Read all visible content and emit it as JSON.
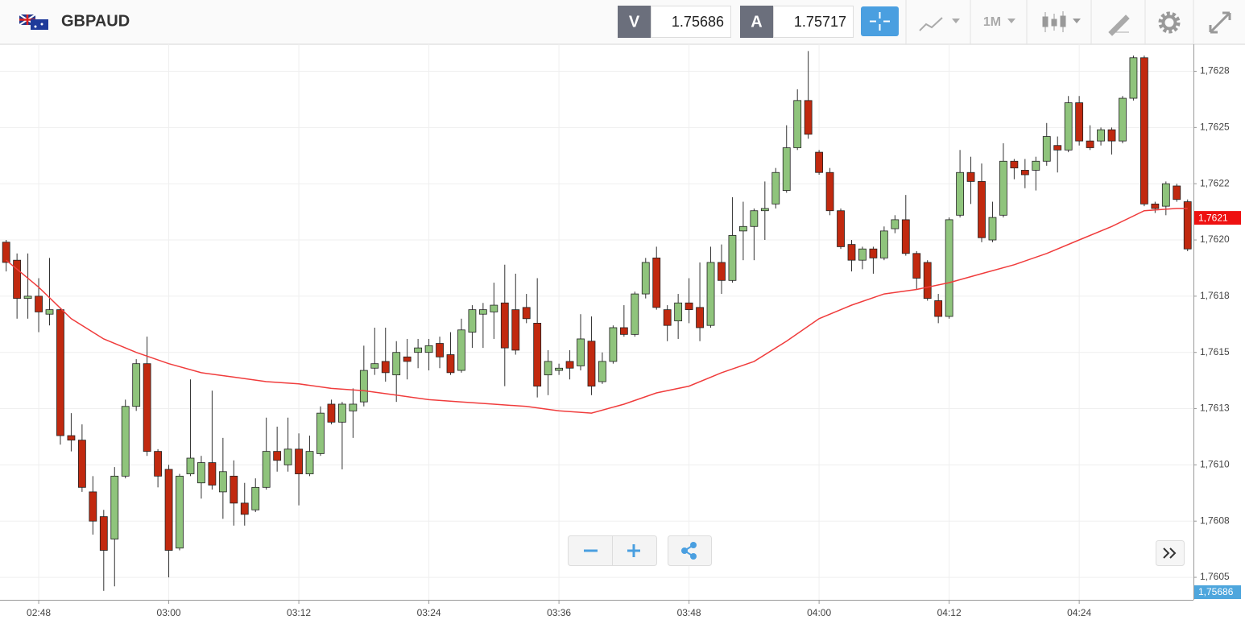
{
  "header": {
    "symbol": "GBPAUD",
    "bid_label": "V",
    "bid": 1.75686,
    "ask_label": "A",
    "ask": 1.75717,
    "timeframe": "1M"
  },
  "chart_data": {
    "type": "candlestick",
    "up_color": "#8fc47c",
    "down_color": "#c1290f",
    "x": [
      165,
      166,
      167,
      168,
      169,
      170,
      171,
      172,
      173,
      174,
      175,
      176,
      177,
      178,
      179,
      180,
      181,
      182,
      183,
      184,
      185,
      186,
      187,
      188,
      189,
      190,
      191,
      192,
      193,
      194,
      195,
      196,
      197,
      198,
      199,
      200,
      201,
      202,
      203,
      204,
      205,
      206,
      207,
      208,
      209,
      210,
      211,
      212,
      213,
      214,
      215,
      216,
      217,
      218,
      219,
      220,
      221,
      222,
      223,
      224,
      225,
      226,
      227,
      228,
      229,
      230,
      231,
      232,
      233,
      234,
      235,
      236,
      237,
      238,
      239,
      240,
      241,
      242,
      243,
      244,
      245,
      246,
      247,
      248,
      249,
      250,
      251,
      252,
      253,
      254,
      255,
      256,
      257,
      258,
      259,
      260,
      261,
      262,
      263,
      264,
      265,
      266,
      267,
      268,
      269,
      270,
      271,
      272,
      273,
      274
    ],
    "open": [
      1.76199,
      1.76191,
      1.76174,
      1.76175,
      1.76167,
      1.76169,
      1.76113,
      1.76111,
      1.76088,
      1.76077,
      1.76067,
      1.76095,
      1.76126,
      1.76145,
      1.76106,
      1.76098,
      1.76063,
      1.76096,
      1.76092,
      1.76101,
      1.76088,
      1.76095,
      1.76083,
      1.7608,
      1.7609,
      1.76106,
      1.761,
      1.76107,
      1.76096,
      1.76105,
      1.76127,
      1.76119,
      1.76124,
      1.76128,
      1.76143,
      1.76146,
      1.7614,
      1.76148,
      1.7615,
      1.7615,
      1.76154,
      1.76149,
      1.76142,
      1.76159,
      1.76167,
      1.76168,
      1.76172,
      1.76169,
      1.7617,
      1.76163,
      1.7614,
      1.76142,
      1.76146,
      1.76144,
      1.76155,
      1.76137,
      1.76146,
      1.76161,
      1.76158,
      1.76176,
      1.76192,
      1.76169,
      1.76164,
      1.76172,
      1.7617,
      1.76162,
      1.7619,
      1.76182,
      1.76204,
      1.76206,
      1.76213,
      1.76216,
      1.76222,
      1.76241,
      1.76262,
      1.76239,
      1.7623,
      1.76213,
      1.76198,
      1.76191,
      1.76196,
      1.76192,
      1.76205,
      1.76209,
      1.76194,
      1.7619,
      1.76173,
      1.76166,
      1.76211,
      1.7623,
      1.76226,
      1.762,
      1.76211,
      1.76235,
      1.76231,
      1.76231,
      1.76235,
      1.76242,
      1.7624,
      1.76261,
      1.76244,
      1.76244,
      1.76249,
      1.76244,
      1.76263,
      1.76281,
      1.76216,
      1.76215,
      1.76224,
      1.76217
    ],
    "high": [
      1.762,
      1.76194,
      1.76194,
      1.76183,
      1.76192,
      1.7617,
      1.76123,
      1.76118,
      1.76095,
      1.7608,
      1.76099,
      1.76129,
      1.76147,
      1.76157,
      1.76107,
      1.761,
      1.76096,
      1.76138,
      1.76104,
      1.76133,
      1.76112,
      1.76102,
      1.76092,
      1.76094,
      1.76121,
      1.76117,
      1.76121,
      1.76114,
      1.76113,
      1.76126,
      1.76129,
      1.76128,
      1.76134,
      1.76153,
      1.76161,
      1.76161,
      1.76155,
      1.76156,
      1.76156,
      1.76156,
      1.76157,
      1.76159,
      1.76165,
      1.76171,
      1.76172,
      1.76181,
      1.76189,
      1.76185,
      1.76176,
      1.76183,
      1.76151,
      1.76145,
      1.76151,
      1.76167,
      1.76166,
      1.7615,
      1.76162,
      1.76171,
      1.76177,
      1.76192,
      1.76197,
      1.76171,
      1.76176,
      1.76183,
      1.7619,
      1.76197,
      1.76198,
      1.76219,
      1.76217,
      1.76214,
      1.76226,
      1.76232,
      1.76251,
      1.76267,
      1.76284,
      1.7624,
      1.76232,
      1.76214,
      1.762,
      1.76197,
      1.76197,
      1.76206,
      1.76211,
      1.7622,
      1.76195,
      1.76191,
      1.76176,
      1.7621,
      1.7624,
      1.76237,
      1.76234,
      1.76217,
      1.76243,
      1.76236,
      1.76236,
      1.76237,
      1.76252,
      1.76246,
      1.76264,
      1.76264,
      1.76251,
      1.7625,
      1.7625,
      1.76264,
      1.76282,
      1.76282,
      1.76217,
      1.76226,
      1.76225,
      1.76218
    ],
    "low": [
      1.76186,
      1.76165,
      1.76165,
      1.76159,
      1.76162,
      1.76109,
      1.76106,
      1.76088,
      1.76069,
      1.76044,
      1.76046,
      1.76094,
      1.76124,
      1.76104,
      1.7609,
      1.7605,
      1.76062,
      1.76095,
      1.76085,
      1.76089,
      1.76076,
      1.76073,
      1.76073,
      1.76079,
      1.76089,
      1.76097,
      1.76097,
      1.76082,
      1.76095,
      1.76104,
      1.76118,
      1.76098,
      1.76112,
      1.76126,
      1.7614,
      1.76137,
      1.76128,
      1.76138,
      1.76143,
      1.76142,
      1.76143,
      1.7614,
      1.76141,
      1.76152,
      1.76152,
      1.76156,
      1.76135,
      1.76149,
      1.76163,
      1.7613,
      1.76131,
      1.7614,
      1.76138,
      1.76142,
      1.76131,
      1.76136,
      1.76145,
      1.76157,
      1.76157,
      1.76174,
      1.76169,
      1.76155,
      1.76156,
      1.76163,
      1.76155,
      1.76161,
      1.76176,
      1.76181,
      1.76191,
      1.76191,
      1.762,
      1.76214,
      1.76221,
      1.7624,
      1.76245,
      1.76229,
      1.76211,
      1.76196,
      1.76186,
      1.76187,
      1.76185,
      1.76191,
      1.76203,
      1.76193,
      1.76178,
      1.76173,
      1.76163,
      1.76165,
      1.7621,
      1.76216,
      1.76199,
      1.76199,
      1.7621,
      1.76227,
      1.76223,
      1.76222,
      1.76233,
      1.7623,
      1.76239,
      1.76242,
      1.7624,
      1.76242,
      1.76238,
      1.76243,
      1.76262,
      1.76215,
      1.76212,
      1.76211,
      1.76217,
      1.76195
    ],
    "close": [
      1.7619,
      1.76174,
      1.76175,
      1.76168,
      1.76169,
      1.76113,
      1.76111,
      1.7609,
      1.76075,
      1.76062,
      1.76095,
      1.76126,
      1.76145,
      1.76106,
      1.76095,
      1.76062,
      1.76095,
      1.76103,
      1.76101,
      1.76091,
      1.76097,
      1.76083,
      1.76078,
      1.7609,
      1.76106,
      1.76102,
      1.76107,
      1.76096,
      1.76106,
      1.76123,
      1.76119,
      1.76127,
      1.76127,
      1.76142,
      1.76145,
      1.76141,
      1.7615,
      1.76146,
      1.76152,
      1.76153,
      1.76148,
      1.76141,
      1.7616,
      1.76169,
      1.76169,
      1.76171,
      1.76152,
      1.76151,
      1.76165,
      1.76135,
      1.76146,
      1.76143,
      1.76143,
      1.76156,
      1.76135,
      1.76146,
      1.76161,
      1.76158,
      1.76176,
      1.7619,
      1.7617,
      1.76162,
      1.76172,
      1.76169,
      1.76161,
      1.7619,
      1.76182,
      1.76202,
      1.76206,
      1.76213,
      1.76214,
      1.7623,
      1.76241,
      1.76262,
      1.76247,
      1.7623,
      1.76213,
      1.76197,
      1.76191,
      1.76196,
      1.76192,
      1.76204,
      1.76209,
      1.76194,
      1.76183,
      1.76174,
      1.76166,
      1.76209,
      1.7623,
      1.76226,
      1.76201,
      1.7621,
      1.76235,
      1.76232,
      1.76229,
      1.76235,
      1.76246,
      1.7624,
      1.76261,
      1.76244,
      1.76241,
      1.76249,
      1.76244,
      1.76263,
      1.76281,
      1.76216,
      1.76214,
      1.76225,
      1.76218,
      1.76196
    ],
    "moving_average": {
      "color": "#f03c3c",
      "x": [
        165,
        168,
        171,
        174,
        177,
        180,
        183,
        186,
        189,
        192,
        195,
        198,
        201,
        204,
        207,
        210,
        213,
        216,
        219,
        222,
        225,
        228,
        231,
        234,
        237,
        240,
        243,
        246,
        249,
        252,
        255,
        258,
        261,
        264,
        267,
        270,
        273,
        274
      ],
      "values": [
        1.76191,
        1.76179,
        1.76165,
        1.76156,
        1.7615,
        1.76145,
        1.76141,
        1.76139,
        1.76137,
        1.76136,
        1.76134,
        1.76133,
        1.76131,
        1.76129,
        1.76128,
        1.76127,
        1.76126,
        1.76124,
        1.76123,
        1.76127,
        1.76132,
        1.76135,
        1.76141,
        1.76146,
        1.76155,
        1.76165,
        1.76171,
        1.76176,
        1.76178,
        1.76181,
        1.76185,
        1.76189,
        1.76194,
        1.762,
        1.76206,
        1.76213,
        1.76214,
        1.76214
      ]
    },
    "xlim": [
      164.43,
      274.54
    ],
    "xticks": [
      {
        "value": 168,
        "label": "02:48"
      },
      {
        "value": 180,
        "label": "03:00"
      },
      {
        "value": 192,
        "label": "03:12"
      },
      {
        "value": 204,
        "label": "03:24"
      },
      {
        "value": 216,
        "label": "03:36"
      },
      {
        "value": 228,
        "label": "03:48"
      },
      {
        "value": 240,
        "label": "04:00"
      },
      {
        "value": 252,
        "label": "04:12"
      },
      {
        "value": 264,
        "label": "04:24"
      }
    ],
    "ylim": [
      1.7604,
      1.76287
    ],
    "yticks": [
      {
        "value": 1.7605,
        "label": "1,7605"
      },
      {
        "value": 1.76075,
        "label": "1,7608"
      },
      {
        "value": 1.761,
        "label": "1,7610"
      },
      {
        "value": 1.76125,
        "label": "1,7613"
      },
      {
        "value": 1.7615,
        "label": "1,7615"
      },
      {
        "value": 1.76175,
        "label": "1,7618"
      },
      {
        "value": 1.762,
        "label": "1,7620"
      },
      {
        "value": 1.76225,
        "label": "1,7622"
      },
      {
        "value": 1.7625,
        "label": "1,7625"
      },
      {
        "value": 1.76275,
        "label": "1,7628"
      }
    ],
    "grid": true,
    "last_price": {
      "value": 1.7621,
      "label": "1,7621",
      "color": "#ee1111"
    },
    "bid_price": {
      "value": 1.75686,
      "label": "1,75686",
      "color": "#4ea6dd"
    }
  }
}
